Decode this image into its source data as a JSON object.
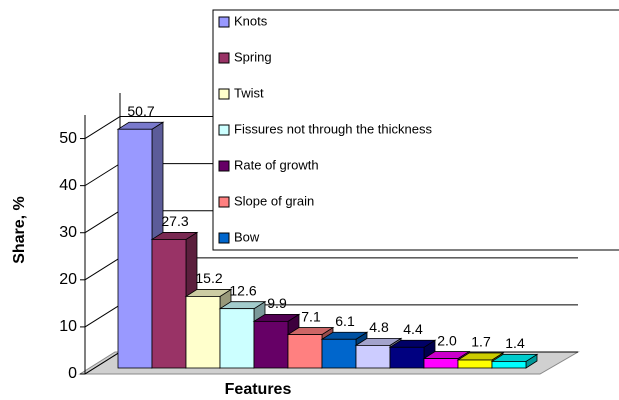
{
  "chart_data": {
    "type": "bar3d",
    "x_label": "Features",
    "y_label": "Share, %",
    "categories": [
      "Knots",
      "Spring",
      "Twist",
      "Fissures not  through the thickness",
      "Rate of growth",
      "Slope of grain",
      "Bow",
      null,
      null,
      null,
      null,
      null
    ],
    "values": [
      50.7,
      27.3,
      15.2,
      12.6,
      9.9,
      7.1,
      6.1,
      4.8,
      4.4,
      2.0,
      1.7,
      1.4
    ],
    "value_labels": [
      "50.7",
      "27.3",
      "15.2",
      "12.6",
      "9.9",
      "7.1",
      "6.1",
      "4.8",
      "4.4",
      "2.0",
      "1.7",
      "1.4"
    ],
    "colors": [
      "#9999ff",
      "#993366",
      "#ffffcc",
      "#ccffff",
      "#660066",
      "#ff8080",
      "#0066cc",
      "#ccccff",
      "#000080",
      "#ff00ff",
      "#ffff00",
      "#00ffff"
    ],
    "ylim": [
      0,
      55
    ],
    "yticks": [
      0,
      10,
      20,
      30,
      40,
      50
    ],
    "grid": true
  }
}
